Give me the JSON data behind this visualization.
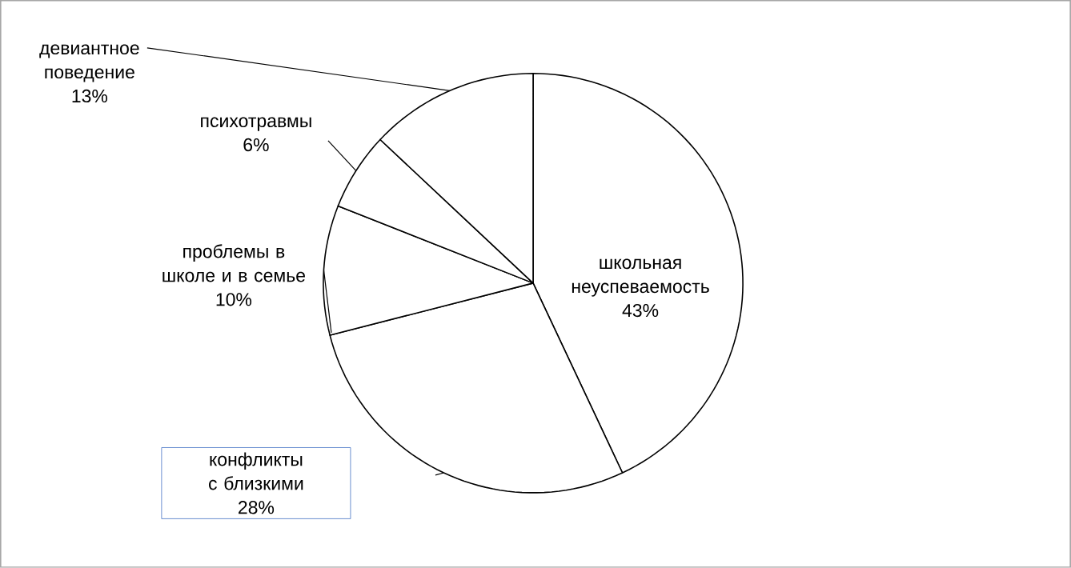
{
  "chart_data": {
    "type": "pie",
    "categories": [
      "школьная неуспеваемость",
      "конфликты с близкими",
      "проблемы в школе и в семье",
      "психотравмы",
      "девиантное поведение"
    ],
    "values": [
      43,
      28,
      10,
      6,
      13
    ],
    "colors": [
      "#ffffff",
      "#ffffff",
      "#ffffff",
      "#ffffff",
      "#ffffff"
    ],
    "value_labels": [
      "43%",
      "28%",
      "10%",
      "6%",
      "13%"
    ]
  }
}
